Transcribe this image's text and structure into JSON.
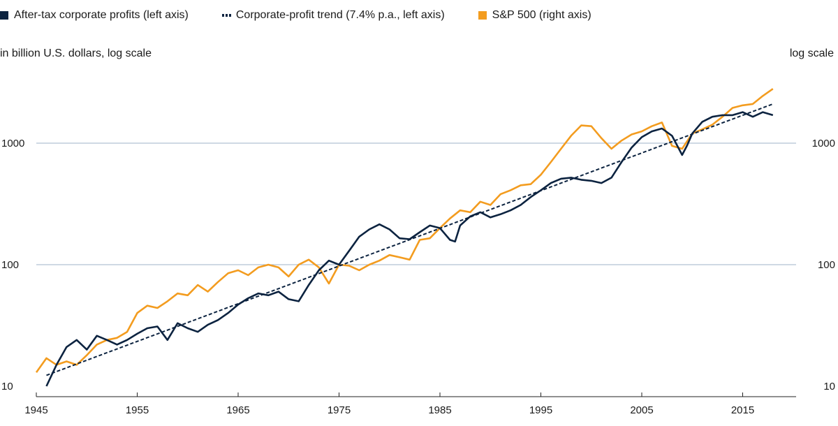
{
  "legend": [
    {
      "label": "After-tax corporate profits (left axis)",
      "color": "#0c2340",
      "style": "square"
    },
    {
      "label": "Corporate-profit trend (7.4% p.a., left axis)",
      "color": "#0c2340",
      "style": "dashed"
    },
    {
      "label": "S&P 500 (right axis)",
      "color": "#f39c1f",
      "style": "square"
    }
  ],
  "left_axis_label": "in billion U.S. dollars, log scale",
  "right_axis_label": "log scale",
  "chart_data": {
    "type": "line",
    "scale": "log",
    "xlim": [
      1945,
      2019
    ],
    "ylim": [
      10,
      3000
    ],
    "yticks": [
      10,
      100,
      1000
    ],
    "xticks": [
      1945,
      1955,
      1965,
      1975,
      1985,
      1995,
      2005,
      2015
    ],
    "grid": "horizontal",
    "series": [
      {
        "name": "After-tax corporate profits (left axis)",
        "color": "#0c2340",
        "style": "solid",
        "x": [
          1946.0,
          1947.0,
          1948.0,
          1949.0,
          1950.0,
          1951.0,
          1952.0,
          1953.0,
          1954.0,
          1955.0,
          1956.0,
          1957.0,
          1958.0,
          1959.0,
          1960.0,
          1961.0,
          1962.0,
          1963.0,
          1964.0,
          1965.0,
          1966.0,
          1967.0,
          1968.0,
          1969.0,
          1970.0,
          1971.0,
          1972.0,
          1973.0,
          1974.0,
          1975.0,
          1976.0,
          1977.0,
          1978.0,
          1979.0,
          1980.0,
          1981.0,
          1982.0,
          1983.0,
          1984.0,
          1985.0,
          1986.0,
          1986.5,
          1987.0,
          1988.0,
          1989.0,
          1990.0,
          1991.0,
          1992.0,
          1993.0,
          1994.0,
          1995.0,
          1996.0,
          1997.0,
          1998.0,
          1999.0,
          2000.0,
          2001.0,
          2002.0,
          2003.0,
          2004.0,
          2005.0,
          2006.0,
          2007.0,
          2008.0,
          2009.0,
          2009.5,
          2010.0,
          2011.0,
          2012.0,
          2013.0,
          2014.0,
          2015.0,
          2016.0,
          2017.0,
          2018.0
        ],
        "values": [
          10,
          15,
          21,
          24,
          20,
          26,
          24,
          22,
          24,
          27,
          30,
          31,
          24,
          33,
          30,
          28,
          32,
          35,
          40,
          47,
          53,
          58,
          56,
          60,
          52,
          50,
          68,
          90,
          108,
          100,
          130,
          170,
          195,
          215,
          195,
          165,
          162,
          185,
          210,
          200,
          160,
          155,
          210,
          250,
          270,
          245,
          260,
          280,
          310,
          360,
          410,
          470,
          510,
          520,
          500,
          490,
          470,
          520,
          700,
          920,
          1120,
          1250,
          1320,
          1150,
          800,
          960,
          1200,
          1500,
          1650,
          1700,
          1700,
          1800,
          1650,
          1800,
          1700
        ]
      },
      {
        "name": "Corporate-profit trend (7.4% p.a., left axis)",
        "color": "#0c2340",
        "style": "dashed",
        "x": [
          1946,
          2018
        ],
        "values": [
          12.3,
          2100
        ]
      },
      {
        "name": "S&P 500 (right axis)",
        "color": "#f39c1f",
        "style": "solid",
        "x": [
          1945.0,
          1946.0,
          1947.0,
          1948.0,
          1949.0,
          1950.0,
          1951.0,
          1952.0,
          1953.0,
          1954.0,
          1955.0,
          1956.0,
          1957.0,
          1958.0,
          1959.0,
          1960.0,
          1961.0,
          1962.0,
          1963.0,
          1964.0,
          1965.0,
          1966.0,
          1967.0,
          1968.0,
          1969.0,
          1970.0,
          1971.0,
          1972.0,
          1973.0,
          1974.0,
          1975.0,
          1976.0,
          1977.0,
          1978.0,
          1979.0,
          1980.0,
          1981.0,
          1982.0,
          1983.0,
          1984.0,
          1985.0,
          1986.0,
          1987.0,
          1988.0,
          1989.0,
          1990.0,
          1991.0,
          1992.0,
          1993.0,
          1994.0,
          1995.0,
          1996.0,
          1997.0,
          1998.0,
          1999.0,
          2000.0,
          2001.0,
          2002.0,
          2003.0,
          2004.0,
          2005.0,
          2006.0,
          2007.0,
          2008.0,
          2009.0,
          2010.0,
          2011.0,
          2012.0,
          2013.0,
          2014.0,
          2015.0,
          2016.0,
          2017.0,
          2018.0
        ],
        "values": [
          13,
          17,
          15,
          16,
          15,
          18,
          22,
          24,
          25,
          28,
          40,
          46,
          44,
          50,
          58,
          56,
          68,
          60,
          72,
          85,
          90,
          82,
          95,
          100,
          95,
          80,
          100,
          110,
          95,
          70,
          100,
          98,
          90,
          100,
          108,
          120,
          115,
          110,
          160,
          165,
          200,
          240,
          280,
          270,
          330,
          310,
          380,
          410,
          450,
          460,
          550,
          700,
          900,
          1150,
          1400,
          1380,
          1100,
          900,
          1050,
          1180,
          1250,
          1380,
          1480,
          950,
          900,
          1200,
          1300,
          1420,
          1650,
          1950,
          2050,
          2100,
          2450,
          2800
        ]
      }
    ]
  }
}
